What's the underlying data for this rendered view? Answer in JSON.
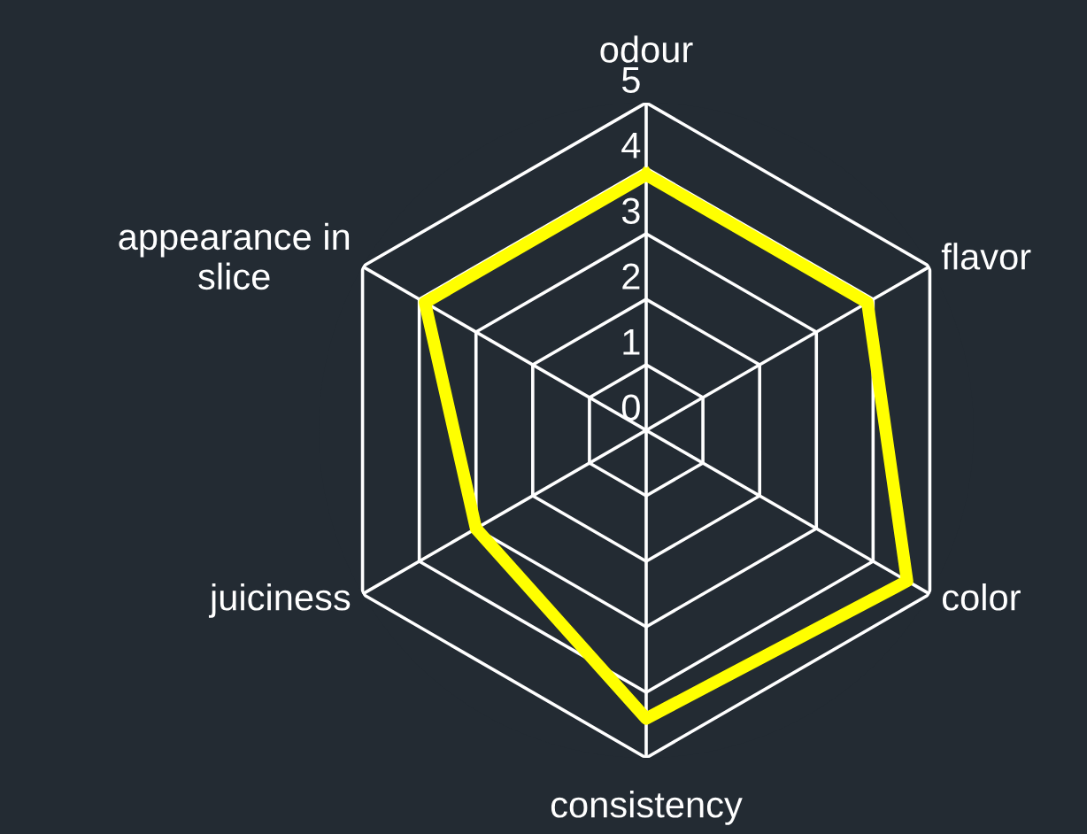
{
  "chart_data": {
    "type": "radar",
    "categories": [
      "odour",
      "flavor",
      "color",
      "consistency",
      "juiciness",
      "appearance in\nslice"
    ],
    "series": [
      {
        "color": "#ffff00",
        "values": [
          3.9,
          3.9,
          4.6,
          4.4,
          3.0,
          3.9
        ]
      }
    ],
    "ylim": [
      0,
      5
    ],
    "yticks": [
      0,
      1,
      2,
      3,
      4,
      5
    ],
    "grid": true,
    "legend": false,
    "marker": "none"
  }
}
